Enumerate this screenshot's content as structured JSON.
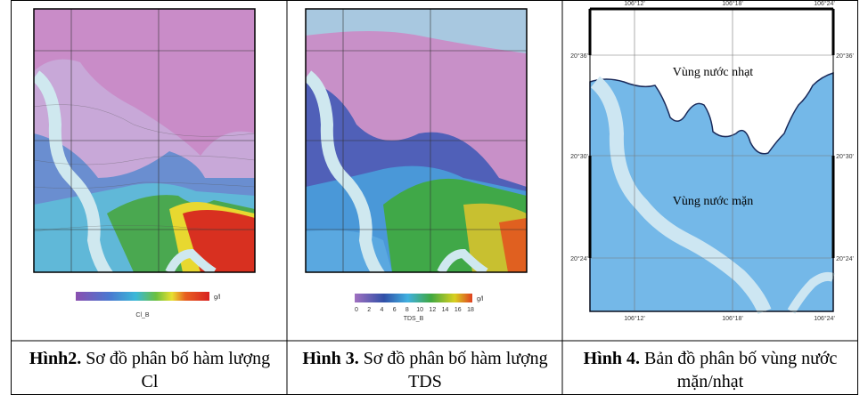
{
  "figures": [
    {
      "label": "Hình2.",
      "caption": "Sơ đồ phân bố hàm lượng Cl",
      "colorbar_title": "Cl_B",
      "colorbar_unit": "g/l"
    },
    {
      "label": "Hình 3.",
      "caption": "Sơ đồ phân bố hàm lượng TDS",
      "colorbar_title": "TDS_B",
      "colorbar_unit": "g/l",
      "colorbar_ticks": [
        "0",
        "2",
        "4",
        "6",
        "8",
        "10",
        "12",
        "14",
        "16",
        "18"
      ]
    },
    {
      "label": "Hình 4.",
      "caption": "Bản đồ phân bố vùng nước mặn/nhạt",
      "regions": [
        "Vùng nước nhạt",
        "Vùng nước mặn"
      ],
      "lon_labels": [
        "106°12'",
        "106°18'",
        "106°24'"
      ],
      "lat_labels": [
        "20°36'",
        "20°30'",
        "20°24'"
      ]
    }
  ]
}
